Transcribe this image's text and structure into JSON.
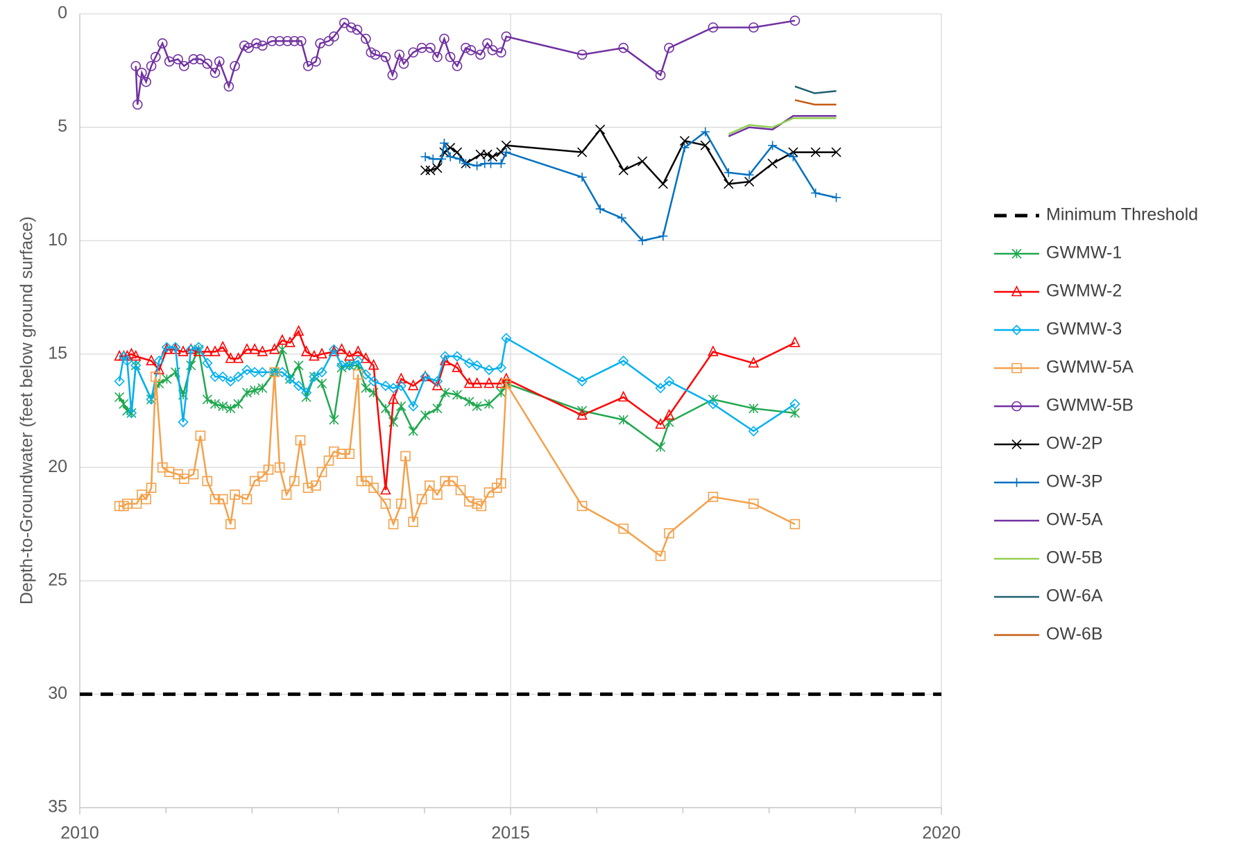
{
  "chart_data": {
    "type": "line",
    "y_label": "Depth-to-Groundwater (feet below ground surface)",
    "xlim": [
      2010,
      2020
    ],
    "xticks": [
      2010,
      2015,
      2020
    ],
    "x_minor_ticks": [
      2011,
      2012,
      2013,
      2014,
      2016,
      2017,
      2018,
      2019
    ],
    "ylim": [
      0,
      35
    ],
    "yticks": [
      0,
      5,
      10,
      15,
      20,
      25,
      30,
      35
    ],
    "y_inverted": true,
    "grid": true,
    "legend": "right",
    "series": [
      {
        "name": "Minimum Threshold",
        "color": "#000000",
        "line_style": "dashed",
        "marker": "none",
        "x": [
          2010,
          2020
        ],
        "values": [
          30,
          30
        ]
      },
      {
        "name": "GWMW-1",
        "color": "#1fa84f",
        "marker": "asterisk",
        "x": [
          2010.46,
          2010.51,
          2010.55,
          2010.6,
          2010.65,
          2010.83,
          2010.92,
          2011.01,
          2011.11,
          2011.2,
          2011.29,
          2011.38,
          2011.48,
          2011.57,
          2011.66,
          2011.75,
          2011.84,
          2011.94,
          2012.03,
          2012.12,
          2012.26,
          2012.35,
          2012.44,
          2012.54,
          2012.63,
          2012.72,
          2012.81,
          2012.95,
          2013.04,
          2013.13,
          2013.23,
          2013.32,
          2013.41,
          2013.55,
          2013.64,
          2013.73,
          2013.87,
          2014.01,
          2014.15,
          2014.24,
          2014.38,
          2014.52,
          2014.61,
          2014.75,
          2014.89,
          2014.95,
          2015.83,
          2016.31,
          2016.74,
          2016.84,
          2017.35,
          2017.82,
          2018.3
        ],
        "values": [
          16.9,
          17.2,
          17.5,
          17.6,
          15.5,
          17.0,
          16.3,
          16.1,
          15.8,
          16.8,
          15.5,
          14.8,
          17.0,
          17.2,
          17.3,
          17.4,
          17.2,
          16.7,
          16.6,
          16.5,
          15.8,
          14.8,
          16.1,
          15.5,
          16.9,
          16.0,
          16.3,
          17.9,
          15.6,
          15.5,
          15.5,
          16.5,
          16.7,
          17.4,
          18.0,
          17.3,
          18.4,
          17.7,
          17.4,
          16.7,
          16.8,
          17.1,
          17.3,
          17.2,
          16.7,
          16.3,
          17.5,
          17.9,
          19.1,
          18.0,
          17.0,
          17.4,
          17.6
        ]
      },
      {
        "name": "GWMW-2",
        "color": "#ff0000",
        "marker": "triangle",
        "x": [
          2010.46,
          2010.51,
          2010.55,
          2010.6,
          2010.65,
          2010.83,
          2010.92,
          2011.01,
          2011.11,
          2011.2,
          2011.29,
          2011.38,
          2011.48,
          2011.57,
          2011.66,
          2011.75,
          2011.84,
          2011.94,
          2012.03,
          2012.12,
          2012.26,
          2012.35,
          2012.44,
          2012.54,
          2012.63,
          2012.72,
          2012.81,
          2012.95,
          2013.04,
          2013.13,
          2013.23,
          2013.32,
          2013.41,
          2013.55,
          2013.64,
          2013.73,
          2013.87,
          2014.01,
          2014.15,
          2014.24,
          2014.38,
          2014.52,
          2014.61,
          2014.75,
          2014.89,
          2014.95,
          2015.83,
          2016.31,
          2016.74,
          2016.84,
          2017.35,
          2017.82,
          2018.3
        ],
        "values": [
          15.1,
          15.1,
          15.1,
          15.0,
          15.1,
          15.3,
          15.7,
          14.8,
          14.8,
          14.9,
          14.8,
          14.9,
          14.9,
          14.9,
          14.7,
          15.2,
          15.2,
          14.8,
          14.8,
          14.9,
          14.8,
          14.4,
          14.5,
          14.0,
          14.9,
          15.1,
          15.0,
          14.9,
          14.8,
          15.1,
          14.9,
          15.2,
          15.5,
          21.0,
          17.0,
          16.1,
          16.4,
          16.0,
          16.4,
          15.3,
          15.6,
          16.3,
          16.3,
          16.3,
          16.3,
          16.1,
          17.7,
          16.9,
          18.1,
          17.7,
          14.9,
          15.4,
          14.5
        ]
      },
      {
        "name": "GWMW-3",
        "color": "#00b0f0",
        "marker": "diamond",
        "x": [
          2010.46,
          2010.51,
          2010.55,
          2010.6,
          2010.65,
          2010.83,
          2010.92,
          2011.01,
          2011.11,
          2011.2,
          2011.29,
          2011.38,
          2011.48,
          2011.57,
          2011.66,
          2011.75,
          2011.84,
          2011.94,
          2012.03,
          2012.12,
          2012.26,
          2012.35,
          2012.44,
          2012.54,
          2012.63,
          2012.72,
          2012.81,
          2012.95,
          2013.04,
          2013.13,
          2013.23,
          2013.32,
          2013.41,
          2013.55,
          2013.64,
          2013.73,
          2013.87,
          2014.01,
          2014.15,
          2014.24,
          2014.38,
          2014.52,
          2014.61,
          2014.75,
          2014.89,
          2014.95,
          2015.83,
          2016.31,
          2016.74,
          2016.84,
          2017.35,
          2017.82,
          2018.3
        ],
        "values": [
          16.2,
          15.1,
          15.3,
          17.6,
          15.5,
          17.0,
          15.3,
          14.7,
          14.7,
          18.0,
          14.8,
          14.7,
          15.4,
          16.0,
          16.0,
          16.2,
          16.0,
          15.7,
          15.8,
          15.8,
          15.8,
          15.8,
          16.1,
          16.4,
          16.7,
          16.0,
          15.8,
          14.8,
          15.5,
          15.5,
          15.3,
          15.9,
          16.2,
          16.4,
          16.5,
          16.4,
          17.3,
          16.0,
          16.2,
          15.1,
          15.1,
          15.4,
          15.5,
          15.7,
          15.6,
          14.3,
          16.2,
          15.3,
          16.5,
          16.2,
          17.2,
          18.4,
          17.2
        ]
      },
      {
        "name": "GWMW-5A",
        "color": "#f4a04a",
        "marker": "square",
        "x": [
          2010.46,
          2010.51,
          2010.55,
          2010.66,
          2010.72,
          2010.77,
          2010.83,
          2010.88,
          2010.96,
          2011.04,
          2011.14,
          2011.21,
          2011.32,
          2011.4,
          2011.48,
          2011.57,
          2011.66,
          2011.75,
          2011.8,
          2011.94,
          2012.03,
          2012.12,
          2012.19,
          2012.26,
          2012.32,
          2012.4,
          2012.49,
          2012.56,
          2012.65,
          2012.74,
          2012.81,
          2012.89,
          2012.95,
          2013.04,
          2013.13,
          2013.23,
          2013.27,
          2013.34,
          2013.41,
          2013.55,
          2013.64,
          2013.73,
          2013.78,
          2013.87,
          2013.97,
          2014.06,
          2014.15,
          2014.24,
          2014.33,
          2014.42,
          2014.52,
          2014.61,
          2014.66,
          2014.75,
          2014.84,
          2014.89,
          2014.95,
          2015.83,
          2016.31,
          2016.74,
          2016.84,
          2017.35,
          2017.82,
          2018.3
        ],
        "values": [
          21.7,
          21.7,
          21.6,
          21.6,
          21.2,
          21.4,
          20.9,
          16.0,
          20.0,
          20.2,
          20.3,
          20.5,
          20.3,
          18.6,
          20.6,
          21.4,
          21.4,
          22.5,
          21.2,
          21.4,
          20.6,
          20.4,
          20.1,
          15.8,
          20.0,
          21.2,
          20.6,
          18.8,
          20.9,
          20.8,
          20.2,
          19.7,
          19.3,
          19.4,
          19.4,
          15.9,
          20.6,
          20.6,
          20.9,
          21.6,
          22.5,
          21.6,
          19.5,
          22.4,
          21.4,
          20.8,
          21.2,
          20.6,
          20.6,
          21.0,
          21.5,
          21.6,
          21.7,
          21.1,
          20.9,
          20.7,
          16.3,
          21.7,
          22.7,
          23.9,
          22.9,
          21.3,
          21.6,
          22.5
        ]
      },
      {
        "name": "GWMW-5B",
        "color": "#7030a0",
        "marker": "circle",
        "x": [
          2010.65,
          2010.67,
          2010.72,
          2010.77,
          2010.83,
          2010.88,
          2010.96,
          2011.04,
          2011.14,
          2011.21,
          2011.32,
          2011.4,
          2011.48,
          2011.57,
          2011.62,
          2011.73,
          2011.8,
          2011.91,
          2011.96,
          2012.05,
          2012.12,
          2012.23,
          2012.32,
          2012.41,
          2012.49,
          2012.57,
          2012.65,
          2012.74,
          2012.79,
          2012.89,
          2012.95,
          2013.07,
          2013.15,
          2013.22,
          2013.32,
          2013.38,
          2013.43,
          2013.55,
          2013.63,
          2013.71,
          2013.76,
          2013.87,
          2013.97,
          2014.07,
          2014.15,
          2014.23,
          2014.3,
          2014.38,
          2014.48,
          2014.54,
          2014.65,
          2014.73,
          2014.79,
          2014.89,
          2014.95,
          2015.83,
          2016.31,
          2016.74,
          2016.84,
          2017.35,
          2017.82,
          2018.3
        ],
        "values": [
          2.3,
          4.0,
          2.6,
          3.0,
          2.3,
          1.9,
          1.3,
          2.1,
          2.0,
          2.3,
          2.0,
          2.0,
          2.2,
          2.6,
          2.1,
          3.2,
          2.3,
          1.4,
          1.5,
          1.3,
          1.4,
          1.2,
          1.2,
          1.2,
          1.2,
          1.2,
          2.3,
          2.1,
          1.3,
          1.2,
          1.0,
          0.4,
          0.6,
          0.7,
          1.1,
          1.7,
          1.8,
          1.9,
          2.7,
          1.8,
          2.2,
          1.7,
          1.5,
          1.5,
          1.9,
          1.1,
          1.9,
          2.3,
          1.5,
          1.6,
          1.8,
          1.3,
          1.6,
          1.7,
          1.0,
          1.8,
          1.5,
          2.7,
          1.5,
          0.6,
          0.6,
          0.3
        ]
      },
      {
        "name": "OW-2P",
        "color": "#000000",
        "marker": "x",
        "x": [
          2014.01,
          2014.07,
          2014.15,
          2014.23,
          2014.3,
          2014.38,
          2014.48,
          2014.65,
          2014.73,
          2014.79,
          2014.89,
          2014.95,
          2015.83,
          2016.04,
          2016.31,
          2016.53,
          2016.77,
          2017.02,
          2017.26,
          2017.53,
          2017.77,
          2018.04,
          2018.28,
          2018.54,
          2018.78
        ],
        "values": [
          6.9,
          6.9,
          6.8,
          6.1,
          5.9,
          6.1,
          6.6,
          6.2,
          6.2,
          6.3,
          6.1,
          5.8,
          6.1,
          5.1,
          6.9,
          6.5,
          7.5,
          5.6,
          5.8,
          7.5,
          7.4,
          6.6,
          6.1,
          6.1,
          6.1
        ]
      },
      {
        "name": "OW-3P",
        "color": "#0070c0",
        "marker": "plus",
        "x": [
          2014.01,
          2014.1,
          2014.2,
          2014.23,
          2014.3,
          2014.41,
          2014.48,
          2014.61,
          2014.7,
          2014.77,
          2014.89,
          2014.95,
          2015.83,
          2016.04,
          2016.29,
          2016.53,
          2016.77,
          2017.02,
          2017.26,
          2017.53,
          2017.77,
          2018.04,
          2018.28,
          2018.54,
          2018.78
        ],
        "values": [
          6.3,
          6.4,
          6.4,
          5.7,
          6.3,
          6.4,
          6.6,
          6.7,
          6.6,
          6.6,
          6.6,
          6.1,
          7.2,
          8.6,
          9.0,
          10.0,
          9.8,
          5.9,
          5.2,
          7.0,
          7.1,
          5.8,
          6.3,
          7.9,
          8.1
        ]
      },
      {
        "name": "OW-5A",
        "color": "#7030a0",
        "marker": "none",
        "x": [
          2017.53,
          2017.77,
          2018.04,
          2018.28,
          2018.54,
          2018.78
        ],
        "values": [
          5.4,
          5.0,
          5.1,
          4.5,
          4.5,
          4.5
        ]
      },
      {
        "name": "OW-5B",
        "color": "#92d050",
        "marker": "none",
        "x": [
          2017.53,
          2017.77,
          2018.04,
          2018.28,
          2018.54,
          2018.78
        ],
        "values": [
          5.3,
          4.9,
          5.0,
          4.6,
          4.6,
          4.6
        ]
      },
      {
        "name": "OW-6A",
        "color": "#1f5f6f",
        "marker": "none",
        "x": [
          2018.3,
          2018.53,
          2018.78
        ],
        "values": [
          3.2,
          3.5,
          3.4
        ]
      },
      {
        "name": "OW-6B",
        "color": "#c55a11",
        "marker": "none",
        "x": [
          2018.3,
          2018.53,
          2018.78
        ],
        "values": [
          3.8,
          4.0,
          4.0
        ]
      }
    ]
  }
}
